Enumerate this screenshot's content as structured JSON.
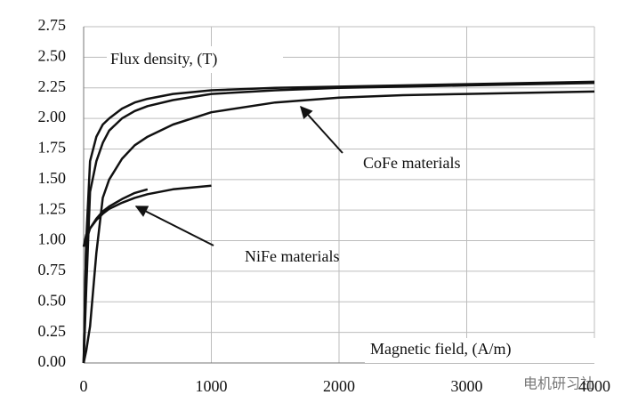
{
  "chart_data": {
    "type": "line",
    "x": [
      0,
      20,
      50,
      100,
      150,
      200,
      300,
      400,
      500,
      700,
      1000,
      1500,
      2000,
      2500,
      3000,
      3500,
      4000
    ],
    "series": [
      {
        "color": "#111111",
        "values": [
          0,
          1.0,
          1.65,
          1.85,
          1.95,
          2.0,
          2.08,
          2.13,
          2.16,
          2.2,
          2.23,
          2.25,
          2.26,
          2.27,
          2.28,
          2.29,
          2.3
        ]
      },
      {
        "color": "#111111",
        "values": [
          0,
          0.6,
          1.4,
          1.65,
          1.8,
          1.9,
          2.0,
          2.06,
          2.1,
          2.15,
          2.2,
          2.23,
          2.25,
          2.26,
          2.27,
          2.28,
          2.29
        ]
      },
      {
        "color": "#111111",
        "values": [
          0,
          0.1,
          0.3,
          0.9,
          1.35,
          1.5,
          1.67,
          1.78,
          1.85,
          1.95,
          2.05,
          2.13,
          2.17,
          2.19,
          2.2,
          2.21,
          2.22
        ]
      },
      {
        "color": "#111111",
        "values": [
          0.95,
          1.05,
          1.1,
          1.17,
          1.22,
          1.26,
          1.31,
          1.35,
          1.38,
          1.42,
          1.45,
          null,
          null,
          null,
          null,
          null,
          null
        ]
      },
      {
        "color": "#111111",
        "values": [
          0,
          1.0,
          1.1,
          1.18,
          1.24,
          1.28,
          1.34,
          1.39,
          1.42,
          null,
          null,
          null,
          null,
          null,
          null,
          null,
          null
        ]
      }
    ],
    "xlim": [
      0,
      4000
    ],
    "xticks": [
      0,
      1000,
      2000,
      3000,
      4000
    ],
    "ylim": [
      0,
      2.75
    ],
    "yticks": [
      {
        "value": 0,
        "label": "0.00"
      },
      {
        "value": 0.25,
        "label": "0.25"
      },
      {
        "value": 0.5,
        "label": "0.50"
      },
      {
        "value": 0.75,
        "label": "0.75"
      },
      {
        "value": 1,
        "label": "1.00"
      },
      {
        "value": 1.25,
        "label": "1.25"
      },
      {
        "value": 1.5,
        "label": "1.50"
      },
      {
        "value": 1.75,
        "label": "1.75"
      },
      {
        "value": 2,
        "label": "2.00"
      },
      {
        "value": 2.25,
        "label": "2.25"
      },
      {
        "value": 2.5,
        "label": "2.50"
      },
      {
        "value": 2.75,
        "label": "2.75"
      }
    ],
    "grid": true,
    "y_label": "Flux density, (T)",
    "x_label": "Magnetic field, (A/m)",
    "annotations": [
      "CoFe materials",
      "NiFe materials"
    ],
    "watermark": "电机研习社"
  }
}
